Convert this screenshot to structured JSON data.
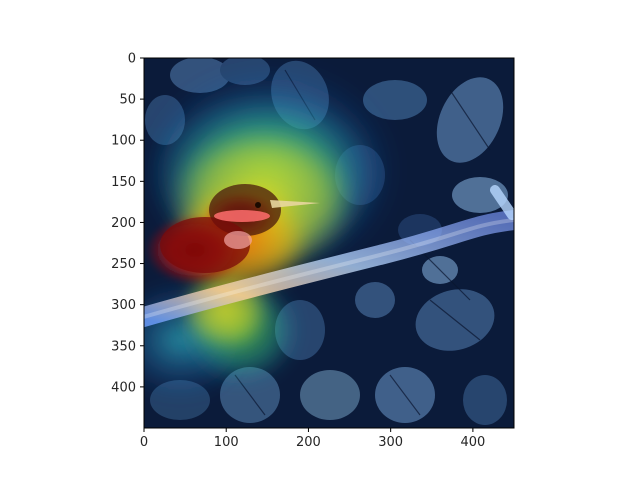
{
  "figure": {
    "description_free": true,
    "axes": {
      "x_ticks": [
        0,
        100,
        200,
        300,
        400
      ],
      "y_ticks": [
        0,
        50,
        100,
        150,
        200,
        250,
        300,
        350,
        400
      ],
      "x_range": [
        0,
        450
      ],
      "y_range": [
        0,
        450
      ],
      "y_inverted": true,
      "grid": false
    },
    "colors": {
      "background": "#ffffff",
      "spine": "#000000",
      "leaf_dark": "#0b1b3a",
      "leaf_mid": "#2c4d78",
      "leaf_light": "#5d7fa8",
      "heat_red": "#b40000",
      "heat_orange": "#ff7a00",
      "heat_yellow": "#d7d71a",
      "heat_green": "#3fbf5f",
      "heat_cyan": "#35c7d8",
      "branch_pink": "#f2a3a3"
    }
  }
}
